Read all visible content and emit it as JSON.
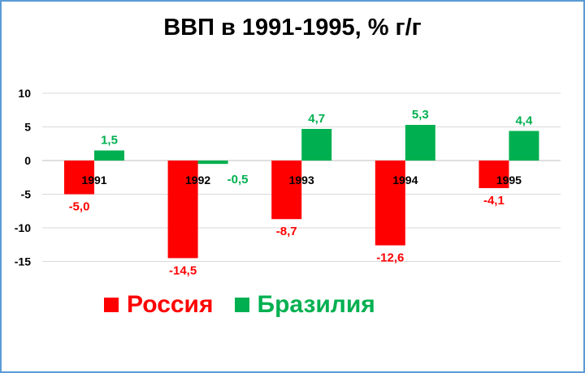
{
  "chart_data": {
    "type": "bar",
    "title": "ВВП в 1991-1995, % г/г",
    "categories": [
      "1991",
      "1992",
      "1993",
      "1994",
      "1995"
    ],
    "series": [
      {
        "name": "Россия",
        "color": "#ff0000",
        "values": [
          -5.0,
          -14.5,
          -8.7,
          -12.6,
          -4.1
        ],
        "labels": [
          "-5,0",
          "-14,5",
          "-8,7",
          "-12,6",
          "-4,1"
        ]
      },
      {
        "name": "Бразилия",
        "color": "#00b050",
        "values": [
          1.5,
          -0.5,
          4.7,
          5.3,
          4.4
        ],
        "labels": [
          "1,5",
          "-0,5",
          "4,7",
          "5,3",
          "4,4"
        ]
      }
    ],
    "yticks": [
      10,
      5,
      0,
      -5,
      -10,
      -15
    ],
    "ylim": [
      -15,
      10
    ],
    "grid": true,
    "legend_position": "bottom"
  }
}
